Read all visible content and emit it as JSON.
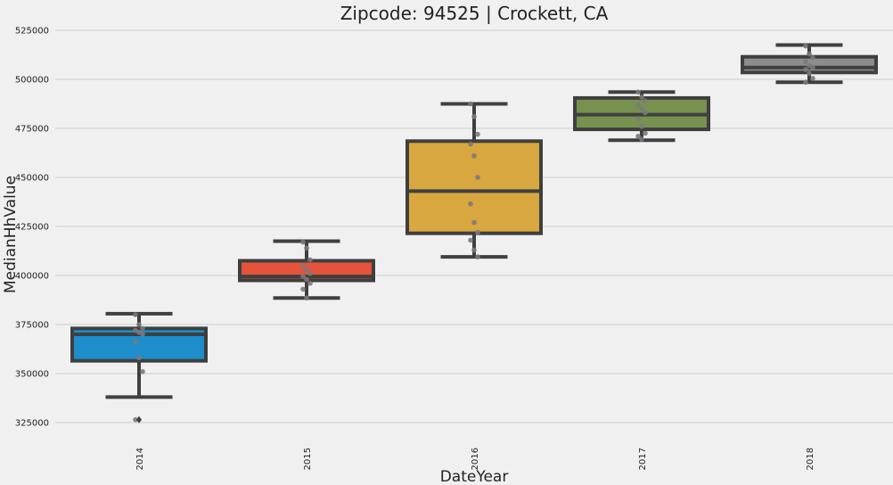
{
  "chart_data": {
    "type": "box",
    "title": "Zipcode: 94525 | Crockett, CA",
    "xlabel": "DateYear",
    "ylabel": "MedianHhValue",
    "ylim": [
      313000,
      527000
    ],
    "y_ticks": [
      325000,
      350000,
      375000,
      400000,
      425000,
      450000,
      475000,
      500000,
      525000
    ],
    "grid": true,
    "categories": [
      "2014",
      "2015",
      "2016",
      "2017",
      "2018"
    ],
    "boxes": [
      {
        "category": "2014",
        "color": "#1d8dcb",
        "whisker_low": 338000,
        "q1": 356500,
        "median": 370000,
        "q3": 373000,
        "whisker_high": 380500,
        "outliers": [
          326500
        ],
        "points": [
          380000,
          375000,
          373000,
          372000,
          371000,
          370000,
          366000,
          358000,
          351000,
          326500
        ]
      },
      {
        "category": "2015",
        "color": "#e5533b",
        "whisker_low": 388500,
        "q1": 397500,
        "median": 399500,
        "q3": 407500,
        "whisker_high": 417500,
        "outliers": [],
        "points": [
          417000,
          414000,
          408000,
          405000,
          403000,
          401000,
          399500,
          398000,
          396000,
          393000,
          388500
        ]
      },
      {
        "category": "2016",
        "color": "#d9a73f",
        "whisker_low": 409500,
        "q1": 421500,
        "median": 443000,
        "q3": 468500,
        "whisker_high": 487500,
        "outliers": [],
        "points": [
          487500,
          481000,
          472000,
          467000,
          461000,
          450000,
          436500,
          427000,
          422000,
          418000,
          413000,
          409500
        ]
      },
      {
        "category": "2017",
        "color": "#77914f",
        "whisker_low": 469000,
        "q1": 474500,
        "median": 482000,
        "q3": 490500,
        "whisker_high": 493500,
        "outliers": [],
        "points": [
          493500,
          491000,
          489000,
          487000,
          485000,
          483000,
          480000,
          476000,
          472500,
          471000,
          469500
        ]
      },
      {
        "category": "2018",
        "color": "#8d8d8d",
        "whisker_low": 498500,
        "q1": 503500,
        "median": 506000,
        "q3": 511500,
        "whisker_high": 517500,
        "outliers": [],
        "points": [
          517000,
          513000,
          511000,
          509000,
          507000,
          506000,
          505000,
          503000,
          500500,
          498500
        ]
      }
    ]
  }
}
